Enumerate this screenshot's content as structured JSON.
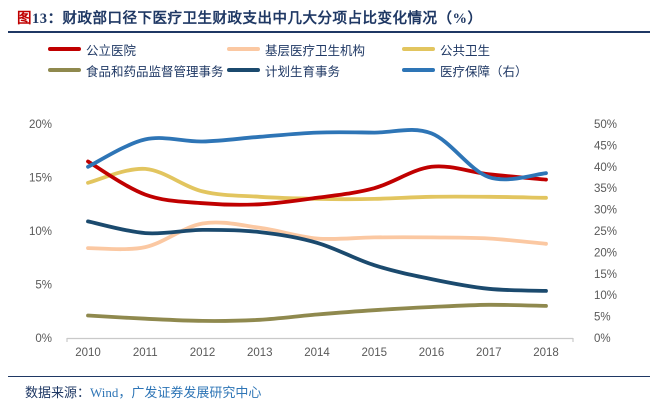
{
  "header": {
    "figure_prefix": "图",
    "figure_number": "13：",
    "title": "财政部口径下医疗卫生财政支出中几大分项占比变化情况（%）"
  },
  "legend": {
    "items": [
      {
        "label": "公立医院",
        "color": "#c00000"
      },
      {
        "label": "基层医疗卫生机构",
        "color": "#fbc8a2"
      },
      {
        "label": "公共卫生",
        "color": "#e2c55f"
      },
      {
        "label": "食品和药品监督管理事务",
        "color": "#8f894e"
      },
      {
        "label": "计划生育事务",
        "color": "#1b4a6e"
      },
      {
        "label": "医疗保障（右）",
        "color": "#2e75b6"
      }
    ]
  },
  "chart_data": {
    "type": "line",
    "title": "财政部口径下医疗卫生财政支出中几大分项占比变化情况（%）",
    "x": [
      2010,
      2011,
      2012,
      2013,
      2014,
      2015,
      2016,
      2017,
      2018
    ],
    "x_tick_labels": [
      "2010",
      "2011",
      "2012",
      "2013",
      "2014",
      "2015",
      "2016",
      "2017",
      "2018"
    ],
    "series": [
      {
        "name": "公立医院",
        "color": "#c00000",
        "axis": "left",
        "values": [
          16.5,
          13.4,
          12.6,
          12.5,
          13.1,
          14.0,
          16.0,
          15.3,
          14.8
        ]
      },
      {
        "name": "基层医疗卫生机构",
        "color": "#fbc8a2",
        "axis": "left",
        "values": [
          8.4,
          8.5,
          10.7,
          10.3,
          9.3,
          9.4,
          9.4,
          9.3,
          8.8
        ]
      },
      {
        "name": "公共卫生",
        "color": "#e2c55f",
        "axis": "left",
        "values": [
          14.5,
          15.8,
          13.7,
          13.2,
          13.0,
          13.0,
          13.2,
          13.2,
          13.1
        ]
      },
      {
        "name": "食品和药品监督管理事务",
        "color": "#8f894e",
        "axis": "left",
        "values": [
          2.1,
          1.8,
          1.6,
          1.7,
          2.2,
          2.6,
          2.9,
          3.1,
          3.0
        ]
      },
      {
        "name": "计划生育事务",
        "color": "#1b4a6e",
        "axis": "left",
        "values": [
          10.9,
          9.8,
          10.1,
          9.9,
          8.9,
          6.8,
          5.5,
          4.6,
          4.4
        ]
      },
      {
        "name": "医疗保障（右）",
        "color": "#2e75b6",
        "axis": "right",
        "values": [
          40.0,
          46.4,
          45.9,
          47.0,
          48.0,
          48.0,
          47.8,
          37.6,
          38.5
        ]
      }
    ],
    "left_axis": {
      "range": [
        0,
        20
      ],
      "tick_labels": [
        "0%",
        "5%",
        "10%",
        "15%",
        "20%"
      ]
    },
    "right_axis": {
      "range": [
        0,
        50
      ],
      "tick_labels": [
        "0%",
        "5%",
        "10%",
        "15%",
        "20%",
        "25%",
        "30%",
        "35%",
        "40%",
        "45%",
        "50%"
      ]
    },
    "grid": "off",
    "legend_position": "top",
    "tick_color": "#595959",
    "axis_line_color": "#c9c9c9"
  },
  "footer": {
    "label": "数据来源：",
    "source": "Wind，广发证券发展研究中心"
  }
}
